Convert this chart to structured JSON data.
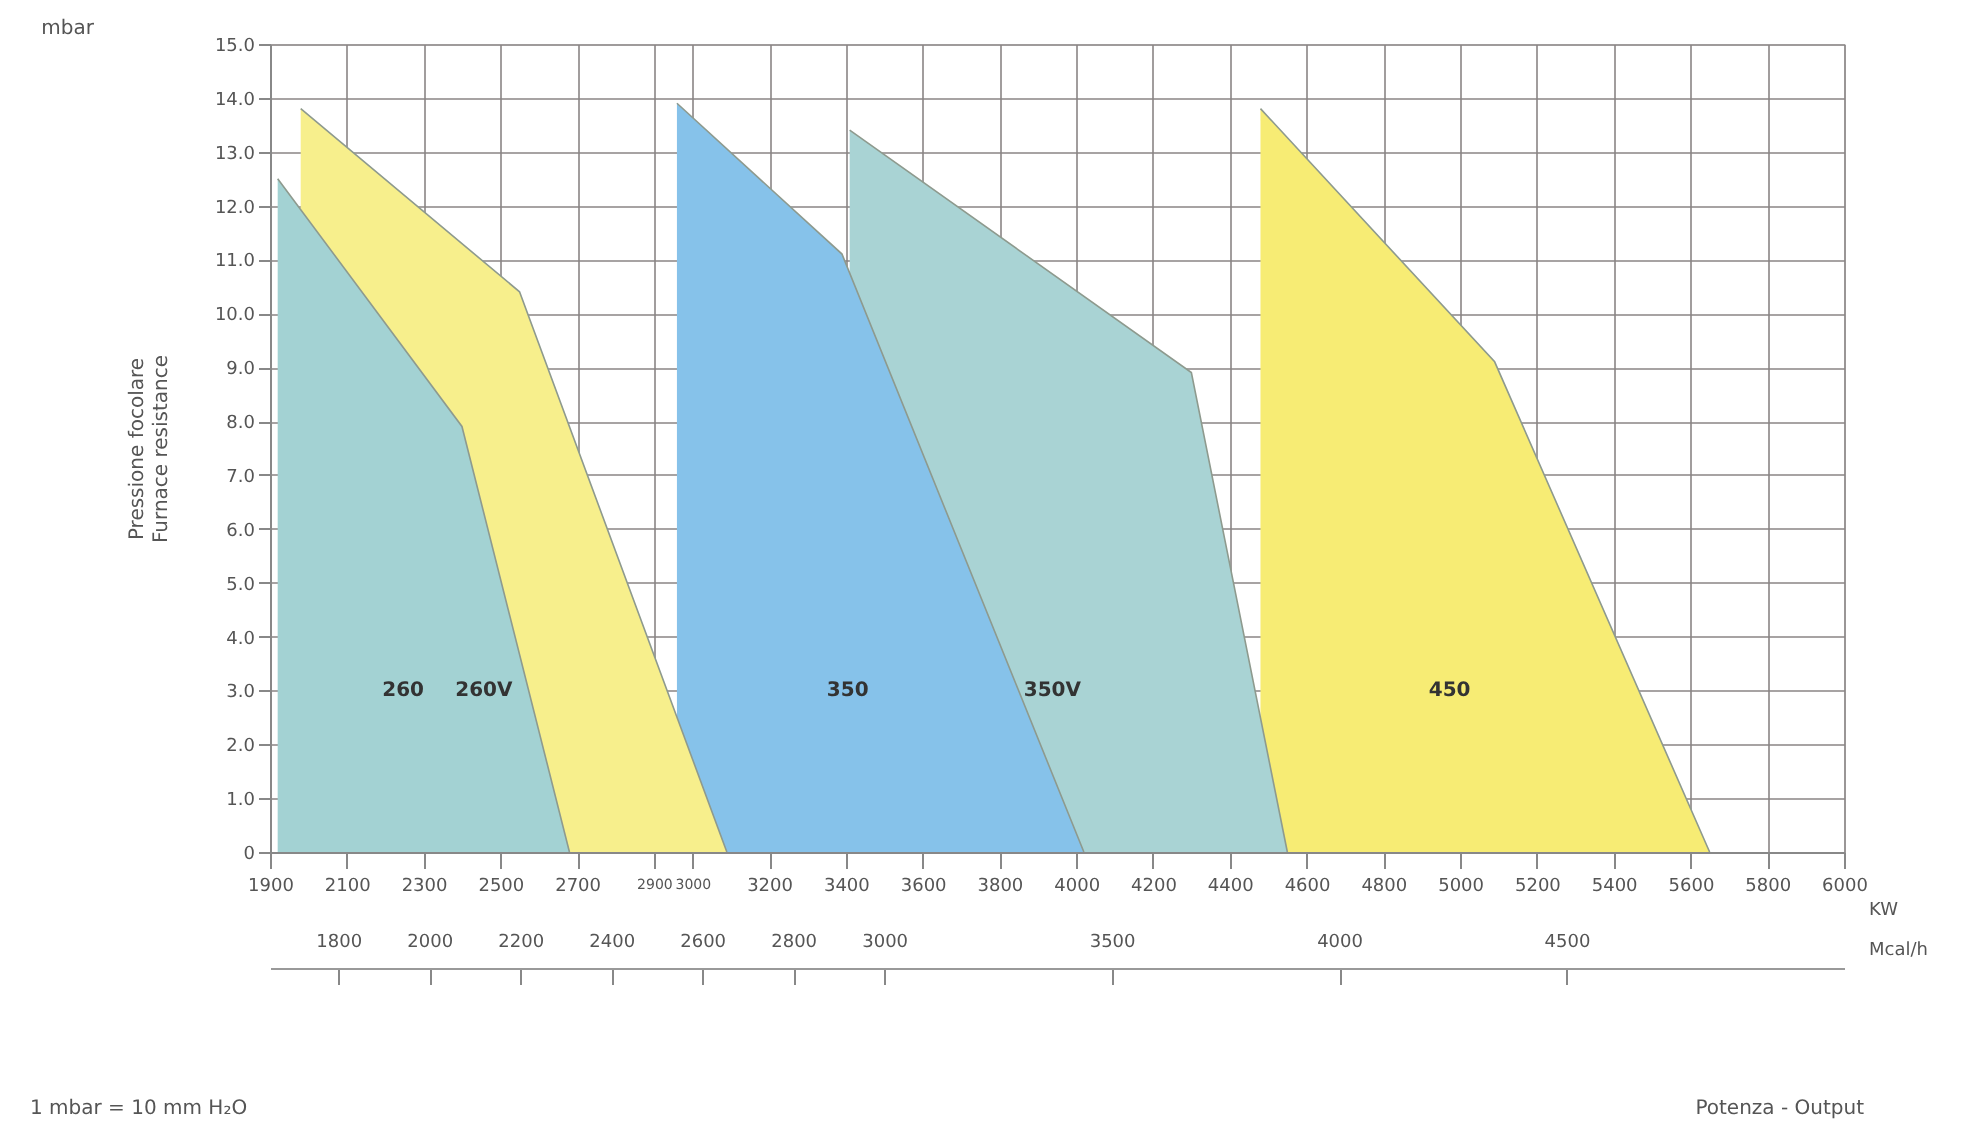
{
  "chart_data": {
    "type": "area",
    "xlabel": "KW",
    "x2label": "Mcal/h",
    "ylabel": "Pressione focolare\nFurnace resistance",
    "xlim": [
      1900,
      6000
    ],
    "xticks": [
      1900,
      2100,
      2300,
      2500,
      2700,
      2900,
      3000,
      3200,
      3400,
      3600,
      3800,
      4000,
      4200,
      4400,
      4600,
      4800,
      5000,
      5200,
      5400,
      5600,
      5800,
      6000
    ],
    "x2lim": [
      1650,
      5110
    ],
    "x2ticks": [
      1800,
      2000,
      2200,
      2400,
      2600,
      2800,
      3000,
      3500,
      4000,
      4500
    ],
    "ylim": [
      0,
      15
    ],
    "yticks": [
      0,
      {
        "value": 1,
        "label": "1.0"
      },
      {
        "value": 2,
        "label": "2.0"
      },
      {
        "value": 3,
        "label": "3.0"
      },
      {
        "value": 4,
        "label": "4.0"
      },
      {
        "value": 5,
        "label": "5.0"
      },
      {
        "value": 6,
        "label": "6.0"
      },
      {
        "value": 7,
        "label": "7.0"
      },
      {
        "value": 8,
        "label": "8.0"
      },
      {
        "value": 9,
        "label": "9.0"
      },
      {
        "value": 10,
        "label": "10.0"
      },
      {
        "value": 11,
        "label": "11.0"
      },
      {
        "value": 12,
        "label": "12.0"
      },
      {
        "value": 13,
        "label": "13.0"
      },
      {
        "value": 14,
        "label": "14.0"
      },
      {
        "value": 15,
        "label": "15.0"
      }
    ],
    "grid": true,
    "series": [
      {
        "name": "450",
        "color": "#f7ec74",
        "x": [
          4480,
          5090,
          5650
        ],
        "values": [
          13.8,
          9.1,
          0
        ]
      },
      {
        "name": "350V",
        "color": "#a9d3d4",
        "x": [
          3410,
          4300,
          4550
        ],
        "values": [
          13.4,
          8.9,
          0
        ]
      },
      {
        "name": "350",
        "color": "#86c2ea",
        "x": [
          2960,
          3390,
          4020
        ],
        "values": [
          13.9,
          11.1,
          0
        ]
      },
      {
        "name": "260V",
        "color": "#f7ef8c",
        "x": [
          1980,
          2550,
          3090
        ],
        "values": [
          13.8,
          10.4,
          0
        ]
      },
      {
        "name": "260",
        "color": "#a3d2d3",
        "x": [
          1920,
          2400,
          2680
        ],
        "values": [
          12.5,
          7.9,
          0
        ]
      }
    ],
    "annotations": [
      "mbar",
      "1 mbar = 10 mm H₂O",
      "Potenza - Output"
    ]
  }
}
